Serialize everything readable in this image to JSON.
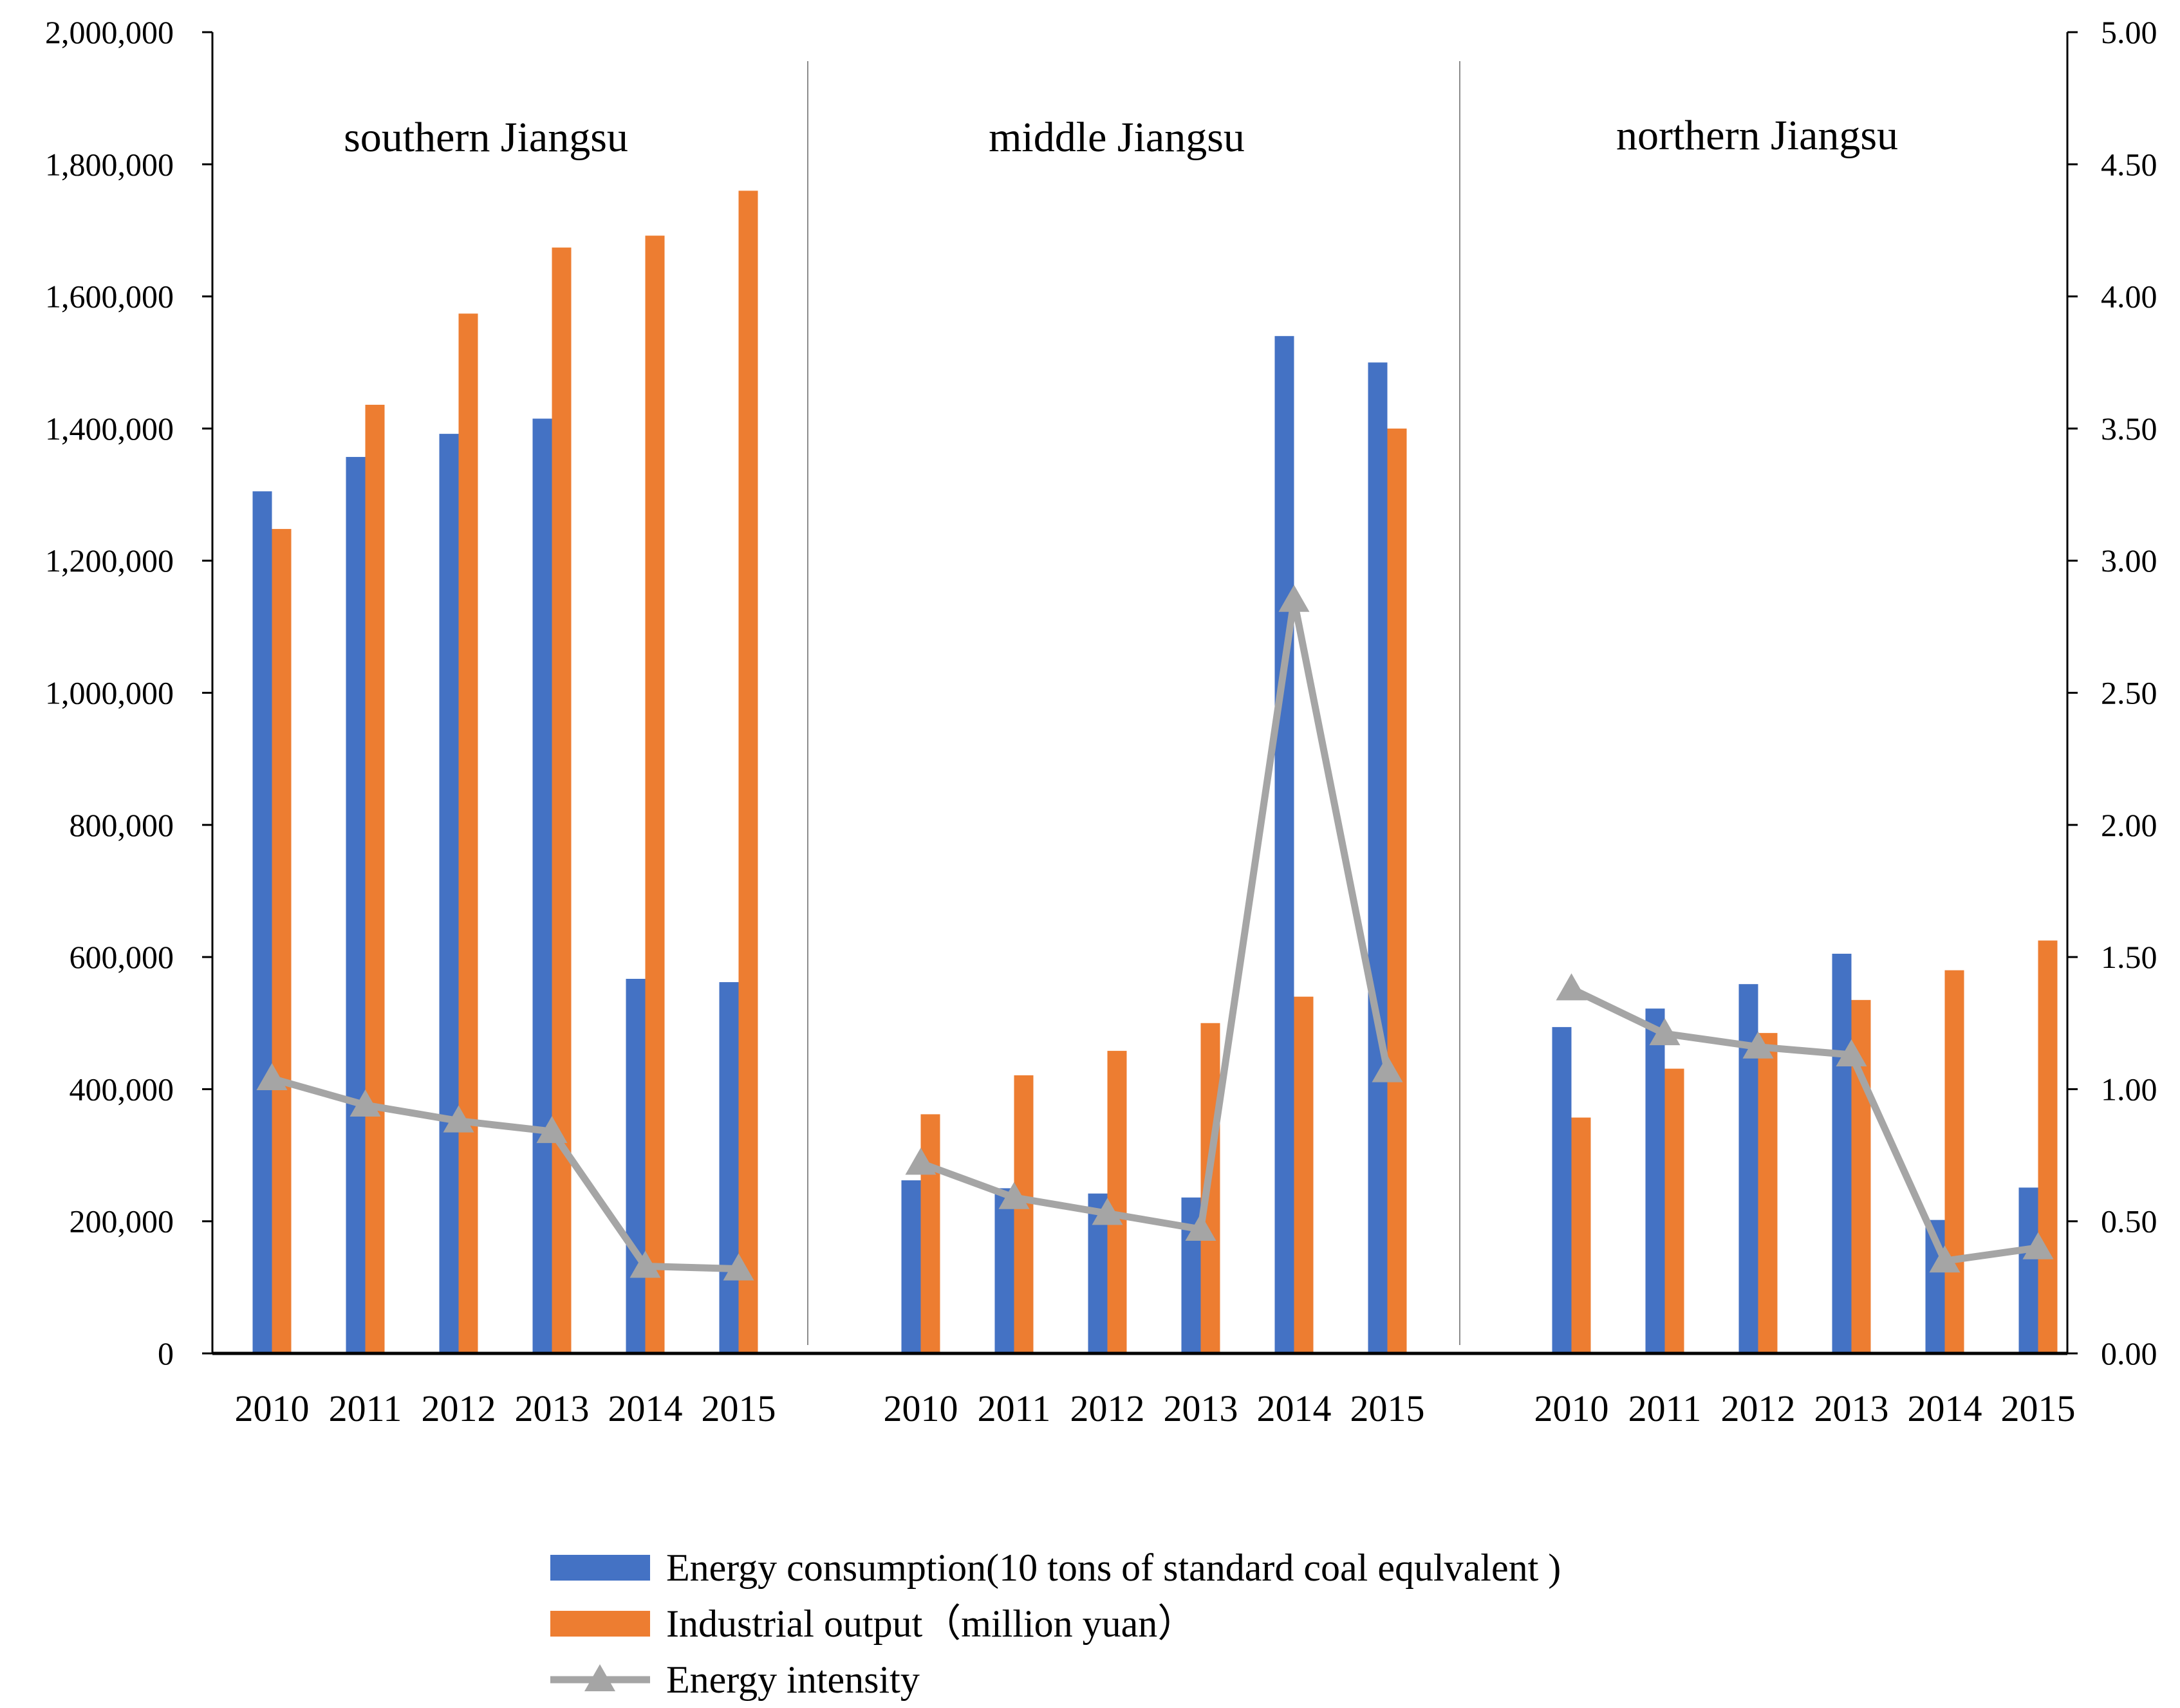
{
  "colors": {
    "energy_consumption": "#4472C4",
    "industrial_output": "#ED7D31",
    "energy_intensity": "#A5A5A5"
  },
  "chart_data": {
    "type": "bar",
    "title": "",
    "xlabel": "",
    "ylabel": "",
    "ylim": [
      0,
      2000000
    ],
    "y2lim": [
      0,
      5
    ],
    "y_ticks": [
      "0",
      "200,000",
      "400,000",
      "600,000",
      "800,000",
      "1,000,000",
      "1,200,000",
      "1,400,000",
      "1,600,000",
      "1,800,000",
      "2,000,000"
    ],
    "y2_ticks": [
      "0.00",
      "0.50",
      "1.00",
      "1.50",
      "2.00",
      "2.50",
      "3.00",
      "3.50",
      "4.00",
      "4.50",
      "5.00"
    ],
    "legend_position": "bottom",
    "groups": [
      {
        "name": "southern Jiangsu",
        "categories": [
          "2010",
          "2011",
          "2012",
          "2013",
          "2014",
          "2015"
        ],
        "series": [
          {
            "name": "Energy consumption(10 tons of standard coal equlvalent )",
            "type": "bar",
            "values": [
              1305000,
              1357000,
              1392000,
              1415000,
              567000,
              562000
            ]
          },
          {
            "name": "Industrial output（million yuan）",
            "type": "bar",
            "values": [
              1248000,
              1436000,
              1574000,
              1674000,
              1692000,
              1760000
            ]
          },
          {
            "name": "Energy intensity",
            "type": "line",
            "axis": "y2",
            "values": [
              1.04,
              0.94,
              0.88,
              0.84,
              0.33,
              0.32
            ]
          }
        ]
      },
      {
        "name": "middle Jiangsu",
        "categories": [
          "2010",
          "2011",
          "2012",
          "2013",
          "2014",
          "2015"
        ],
        "series": [
          {
            "name": "Energy consumption(10 tons of standard coal equlvalent )",
            "type": "bar",
            "values": [
              262000,
              250000,
              242000,
              236000,
              1540000,
              1500000
            ]
          },
          {
            "name": "Industrial output（million yuan）",
            "type": "bar",
            "values": [
              362000,
              421000,
              458000,
              500000,
              540000,
              1400000
            ]
          },
          {
            "name": "Energy intensity",
            "type": "line",
            "axis": "y2",
            "values": [
              0.72,
              0.59,
              0.53,
              0.47,
              2.85,
              1.07
            ]
          }
        ]
      },
      {
        "name": "northern Jiangsu",
        "categories": [
          "2010",
          "2011",
          "2012",
          "2013",
          "2014",
          "2015"
        ],
        "series": [
          {
            "name": "Energy consumption(10 tons of standard coal equlvalent )",
            "type": "bar",
            "values": [
              494000,
              522000,
              559000,
              605000,
              202000,
              251000
            ]
          },
          {
            "name": "Industrial output（million yuan）",
            "type": "bar",
            "values": [
              357000,
              431000,
              485000,
              535000,
              580000,
              625000
            ]
          },
          {
            "name": "Energy intensity",
            "type": "line",
            "axis": "y2",
            "values": [
              1.38,
              1.21,
              1.16,
              1.13,
              0.35,
              0.4
            ]
          }
        ]
      }
    ],
    "legend": [
      {
        "label": "Energy consumption(10 tons of standard coal equlvalent )",
        "kind": "bar",
        "series_key": "energy_consumption"
      },
      {
        "label": "Industrial output（million yuan）",
        "kind": "bar",
        "series_key": "industrial_output"
      },
      {
        "label": "Energy intensity",
        "kind": "line",
        "series_key": "energy_intensity"
      }
    ]
  }
}
